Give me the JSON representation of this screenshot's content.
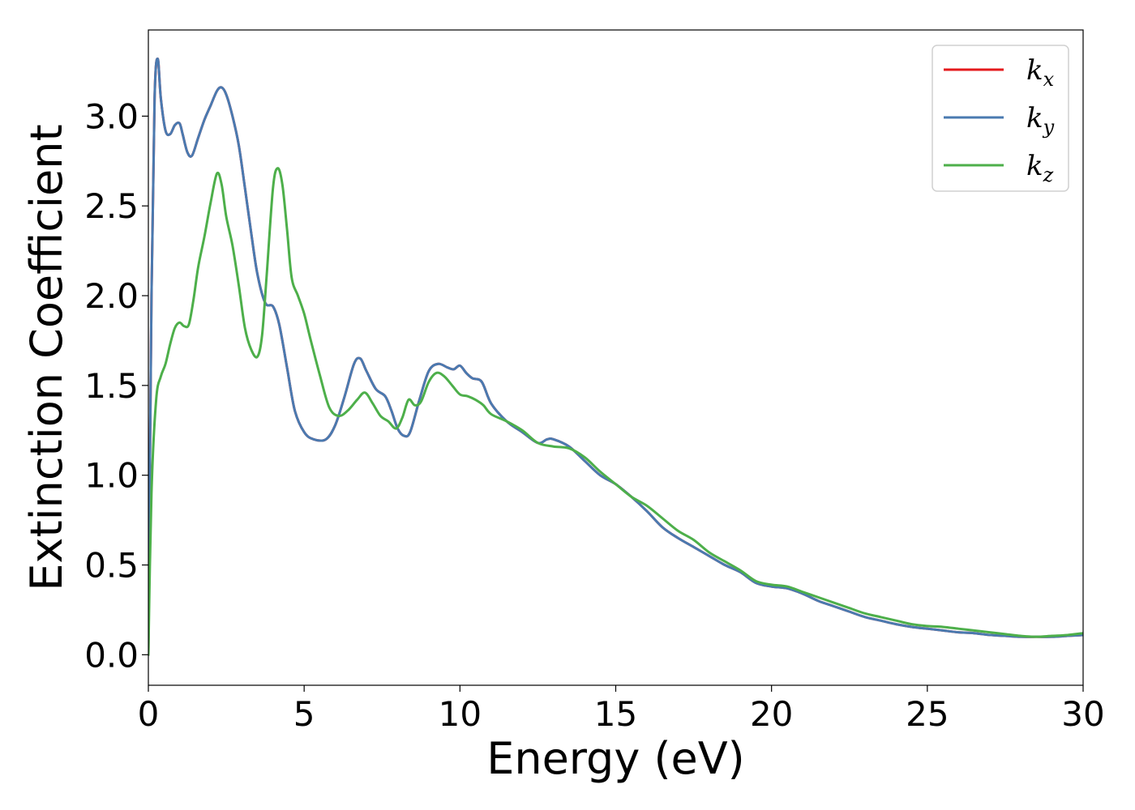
{
  "chart_data": {
    "type": "line",
    "title": "",
    "xlabel": "Energy (eV)",
    "ylabel": "Extinction Coefficient",
    "xlim": [
      0,
      30
    ],
    "ylim": [
      -0.17,
      3.48
    ],
    "xticks": [
      0,
      5,
      10,
      15,
      20,
      25,
      30
    ],
    "xtick_labels": [
      "0",
      "5",
      "10",
      "15",
      "20",
      "25",
      "30"
    ],
    "yticks": [
      0.0,
      0.5,
      1.0,
      1.5,
      2.0,
      2.5,
      3.0
    ],
    "ytick_labels": [
      "0.0",
      "0.5",
      "1.0",
      "1.5",
      "2.0",
      "2.5",
      "3.0"
    ],
    "grid": false,
    "legend_position": "top-right",
    "series": [
      {
        "name": "k_x",
        "legend_base": "k",
        "legend_sub": "x",
        "color": "#e41a1c",
        "x": [
          0,
          0.1,
          0.2,
          0.3,
          0.4,
          0.55,
          0.7,
          0.85,
          1.0,
          1.1,
          1.25,
          1.4,
          1.6,
          1.8,
          2.0,
          2.2,
          2.35,
          2.5,
          2.7,
          2.9,
          3.1,
          3.3,
          3.5,
          3.75,
          4.0,
          4.2,
          4.45,
          4.7,
          5.0,
          5.3,
          5.7,
          6.0,
          6.3,
          6.6,
          6.8,
          7.0,
          7.3,
          7.6,
          7.8,
          8.0,
          8.2,
          8.4,
          8.7,
          9.0,
          9.3,
          9.6,
          9.8,
          10.0,
          10.2,
          10.4,
          10.7,
          11.0,
          11.5,
          12.0,
          12.5,
          12.8,
          13.0,
          13.5,
          14.0,
          14.5,
          15.0,
          15.5,
          16.0,
          16.5,
          17.0,
          17.5,
          18.0,
          18.5,
          19.0,
          19.5,
          20.0,
          20.5,
          21.0,
          21.5,
          22.0,
          22.5,
          23.0,
          23.5,
          24.0,
          24.5,
          25.0,
          25.5,
          26.0,
          26.5,
          27.0,
          27.5,
          28.0,
          28.5,
          29.0,
          29.5,
          30.0
        ],
        "y": [
          0.0,
          2.0,
          3.1,
          3.32,
          3.1,
          2.92,
          2.9,
          2.95,
          2.96,
          2.9,
          2.8,
          2.78,
          2.88,
          2.98,
          3.06,
          3.14,
          3.16,
          3.12,
          3.0,
          2.84,
          2.6,
          2.35,
          2.12,
          1.96,
          1.94,
          1.84,
          1.6,
          1.36,
          1.24,
          1.2,
          1.2,
          1.28,
          1.44,
          1.62,
          1.65,
          1.58,
          1.48,
          1.44,
          1.36,
          1.26,
          1.22,
          1.24,
          1.42,
          1.58,
          1.62,
          1.6,
          1.59,
          1.61,
          1.57,
          1.54,
          1.52,
          1.4,
          1.3,
          1.24,
          1.18,
          1.2,
          1.2,
          1.16,
          1.08,
          1.0,
          0.95,
          0.88,
          0.8,
          0.71,
          0.65,
          0.6,
          0.55,
          0.5,
          0.46,
          0.4,
          0.38,
          0.37,
          0.34,
          0.3,
          0.27,
          0.24,
          0.21,
          0.19,
          0.17,
          0.155,
          0.145,
          0.135,
          0.125,
          0.12,
          0.11,
          0.105,
          0.1,
          0.1,
          0.1,
          0.105,
          0.11
        ]
      },
      {
        "name": "k_y",
        "legend_base": "k",
        "legend_sub": "y",
        "color": "#4a7ab0",
        "x": [
          0,
          0.1,
          0.2,
          0.3,
          0.4,
          0.55,
          0.7,
          0.85,
          1.0,
          1.1,
          1.25,
          1.4,
          1.6,
          1.8,
          2.0,
          2.2,
          2.35,
          2.5,
          2.7,
          2.9,
          3.1,
          3.3,
          3.5,
          3.75,
          4.0,
          4.2,
          4.45,
          4.7,
          5.0,
          5.3,
          5.7,
          6.0,
          6.3,
          6.6,
          6.8,
          7.0,
          7.3,
          7.6,
          7.8,
          8.0,
          8.2,
          8.4,
          8.7,
          9.0,
          9.3,
          9.6,
          9.8,
          10.0,
          10.2,
          10.4,
          10.7,
          11.0,
          11.5,
          12.0,
          12.5,
          12.8,
          13.0,
          13.5,
          14.0,
          14.5,
          15.0,
          15.5,
          16.0,
          16.5,
          17.0,
          17.5,
          18.0,
          18.5,
          19.0,
          19.5,
          20.0,
          20.5,
          21.0,
          21.5,
          22.0,
          22.5,
          23.0,
          23.5,
          24.0,
          24.5,
          25.0,
          25.5,
          26.0,
          26.5,
          27.0,
          27.5,
          28.0,
          28.5,
          29.0,
          29.5,
          30.0
        ],
        "y": [
          0.0,
          2.0,
          3.1,
          3.32,
          3.1,
          2.92,
          2.9,
          2.95,
          2.96,
          2.9,
          2.8,
          2.78,
          2.88,
          2.98,
          3.06,
          3.14,
          3.16,
          3.12,
          3.0,
          2.84,
          2.6,
          2.35,
          2.12,
          1.96,
          1.94,
          1.84,
          1.6,
          1.36,
          1.24,
          1.2,
          1.2,
          1.28,
          1.44,
          1.62,
          1.65,
          1.58,
          1.48,
          1.44,
          1.36,
          1.26,
          1.22,
          1.24,
          1.42,
          1.58,
          1.62,
          1.6,
          1.59,
          1.61,
          1.57,
          1.54,
          1.52,
          1.4,
          1.3,
          1.24,
          1.18,
          1.2,
          1.2,
          1.16,
          1.08,
          1.0,
          0.95,
          0.88,
          0.8,
          0.71,
          0.65,
          0.6,
          0.55,
          0.5,
          0.46,
          0.4,
          0.38,
          0.37,
          0.34,
          0.3,
          0.27,
          0.24,
          0.21,
          0.19,
          0.17,
          0.155,
          0.145,
          0.135,
          0.125,
          0.12,
          0.11,
          0.105,
          0.1,
          0.1,
          0.1,
          0.105,
          0.11
        ]
      },
      {
        "name": "k_z",
        "legend_base": "k",
        "legend_sub": "z",
        "color": "#4daf4a",
        "x": [
          0,
          0.1,
          0.25,
          0.4,
          0.55,
          0.7,
          0.85,
          1.0,
          1.15,
          1.3,
          1.45,
          1.6,
          1.8,
          2.0,
          2.2,
          2.35,
          2.5,
          2.7,
          2.9,
          3.1,
          3.3,
          3.5,
          3.65,
          3.8,
          4.0,
          4.15,
          4.3,
          4.45,
          4.6,
          4.8,
          5.0,
          5.2,
          5.5,
          5.8,
          6.1,
          6.4,
          6.7,
          6.95,
          7.2,
          7.45,
          7.7,
          7.95,
          8.15,
          8.35,
          8.55,
          8.75,
          9.0,
          9.25,
          9.5,
          9.75,
          10.0,
          10.25,
          10.5,
          10.75,
          11.0,
          11.5,
          12.0,
          12.5,
          13.0,
          13.5,
          14.0,
          14.5,
          15.0,
          15.5,
          16.0,
          16.5,
          17.0,
          17.5,
          18.0,
          18.5,
          19.0,
          19.5,
          20.0,
          20.5,
          21.0,
          21.5,
          22.0,
          22.5,
          23.0,
          23.5,
          24.0,
          24.5,
          25.0,
          25.5,
          26.0,
          26.5,
          27.0,
          27.5,
          28.0,
          28.5,
          29.0,
          29.5,
          30.0
        ],
        "y": [
          0.0,
          0.9,
          1.42,
          1.55,
          1.62,
          1.73,
          1.82,
          1.85,
          1.83,
          1.84,
          1.98,
          2.16,
          2.33,
          2.52,
          2.68,
          2.62,
          2.44,
          2.28,
          2.06,
          1.82,
          1.7,
          1.66,
          1.78,
          2.12,
          2.6,
          2.71,
          2.62,
          2.37,
          2.1,
          2.0,
          1.9,
          1.76,
          1.56,
          1.38,
          1.33,
          1.36,
          1.42,
          1.46,
          1.4,
          1.33,
          1.3,
          1.26,
          1.32,
          1.42,
          1.39,
          1.41,
          1.52,
          1.57,
          1.55,
          1.5,
          1.45,
          1.44,
          1.42,
          1.39,
          1.34,
          1.3,
          1.25,
          1.18,
          1.16,
          1.15,
          1.1,
          1.02,
          0.95,
          0.88,
          0.83,
          0.76,
          0.69,
          0.64,
          0.57,
          0.52,
          0.47,
          0.41,
          0.39,
          0.38,
          0.35,
          0.32,
          0.29,
          0.26,
          0.23,
          0.21,
          0.19,
          0.17,
          0.16,
          0.155,
          0.145,
          0.135,
          0.125,
          0.115,
          0.105,
          0.1,
          0.105,
          0.11,
          0.12
        ]
      }
    ]
  }
}
